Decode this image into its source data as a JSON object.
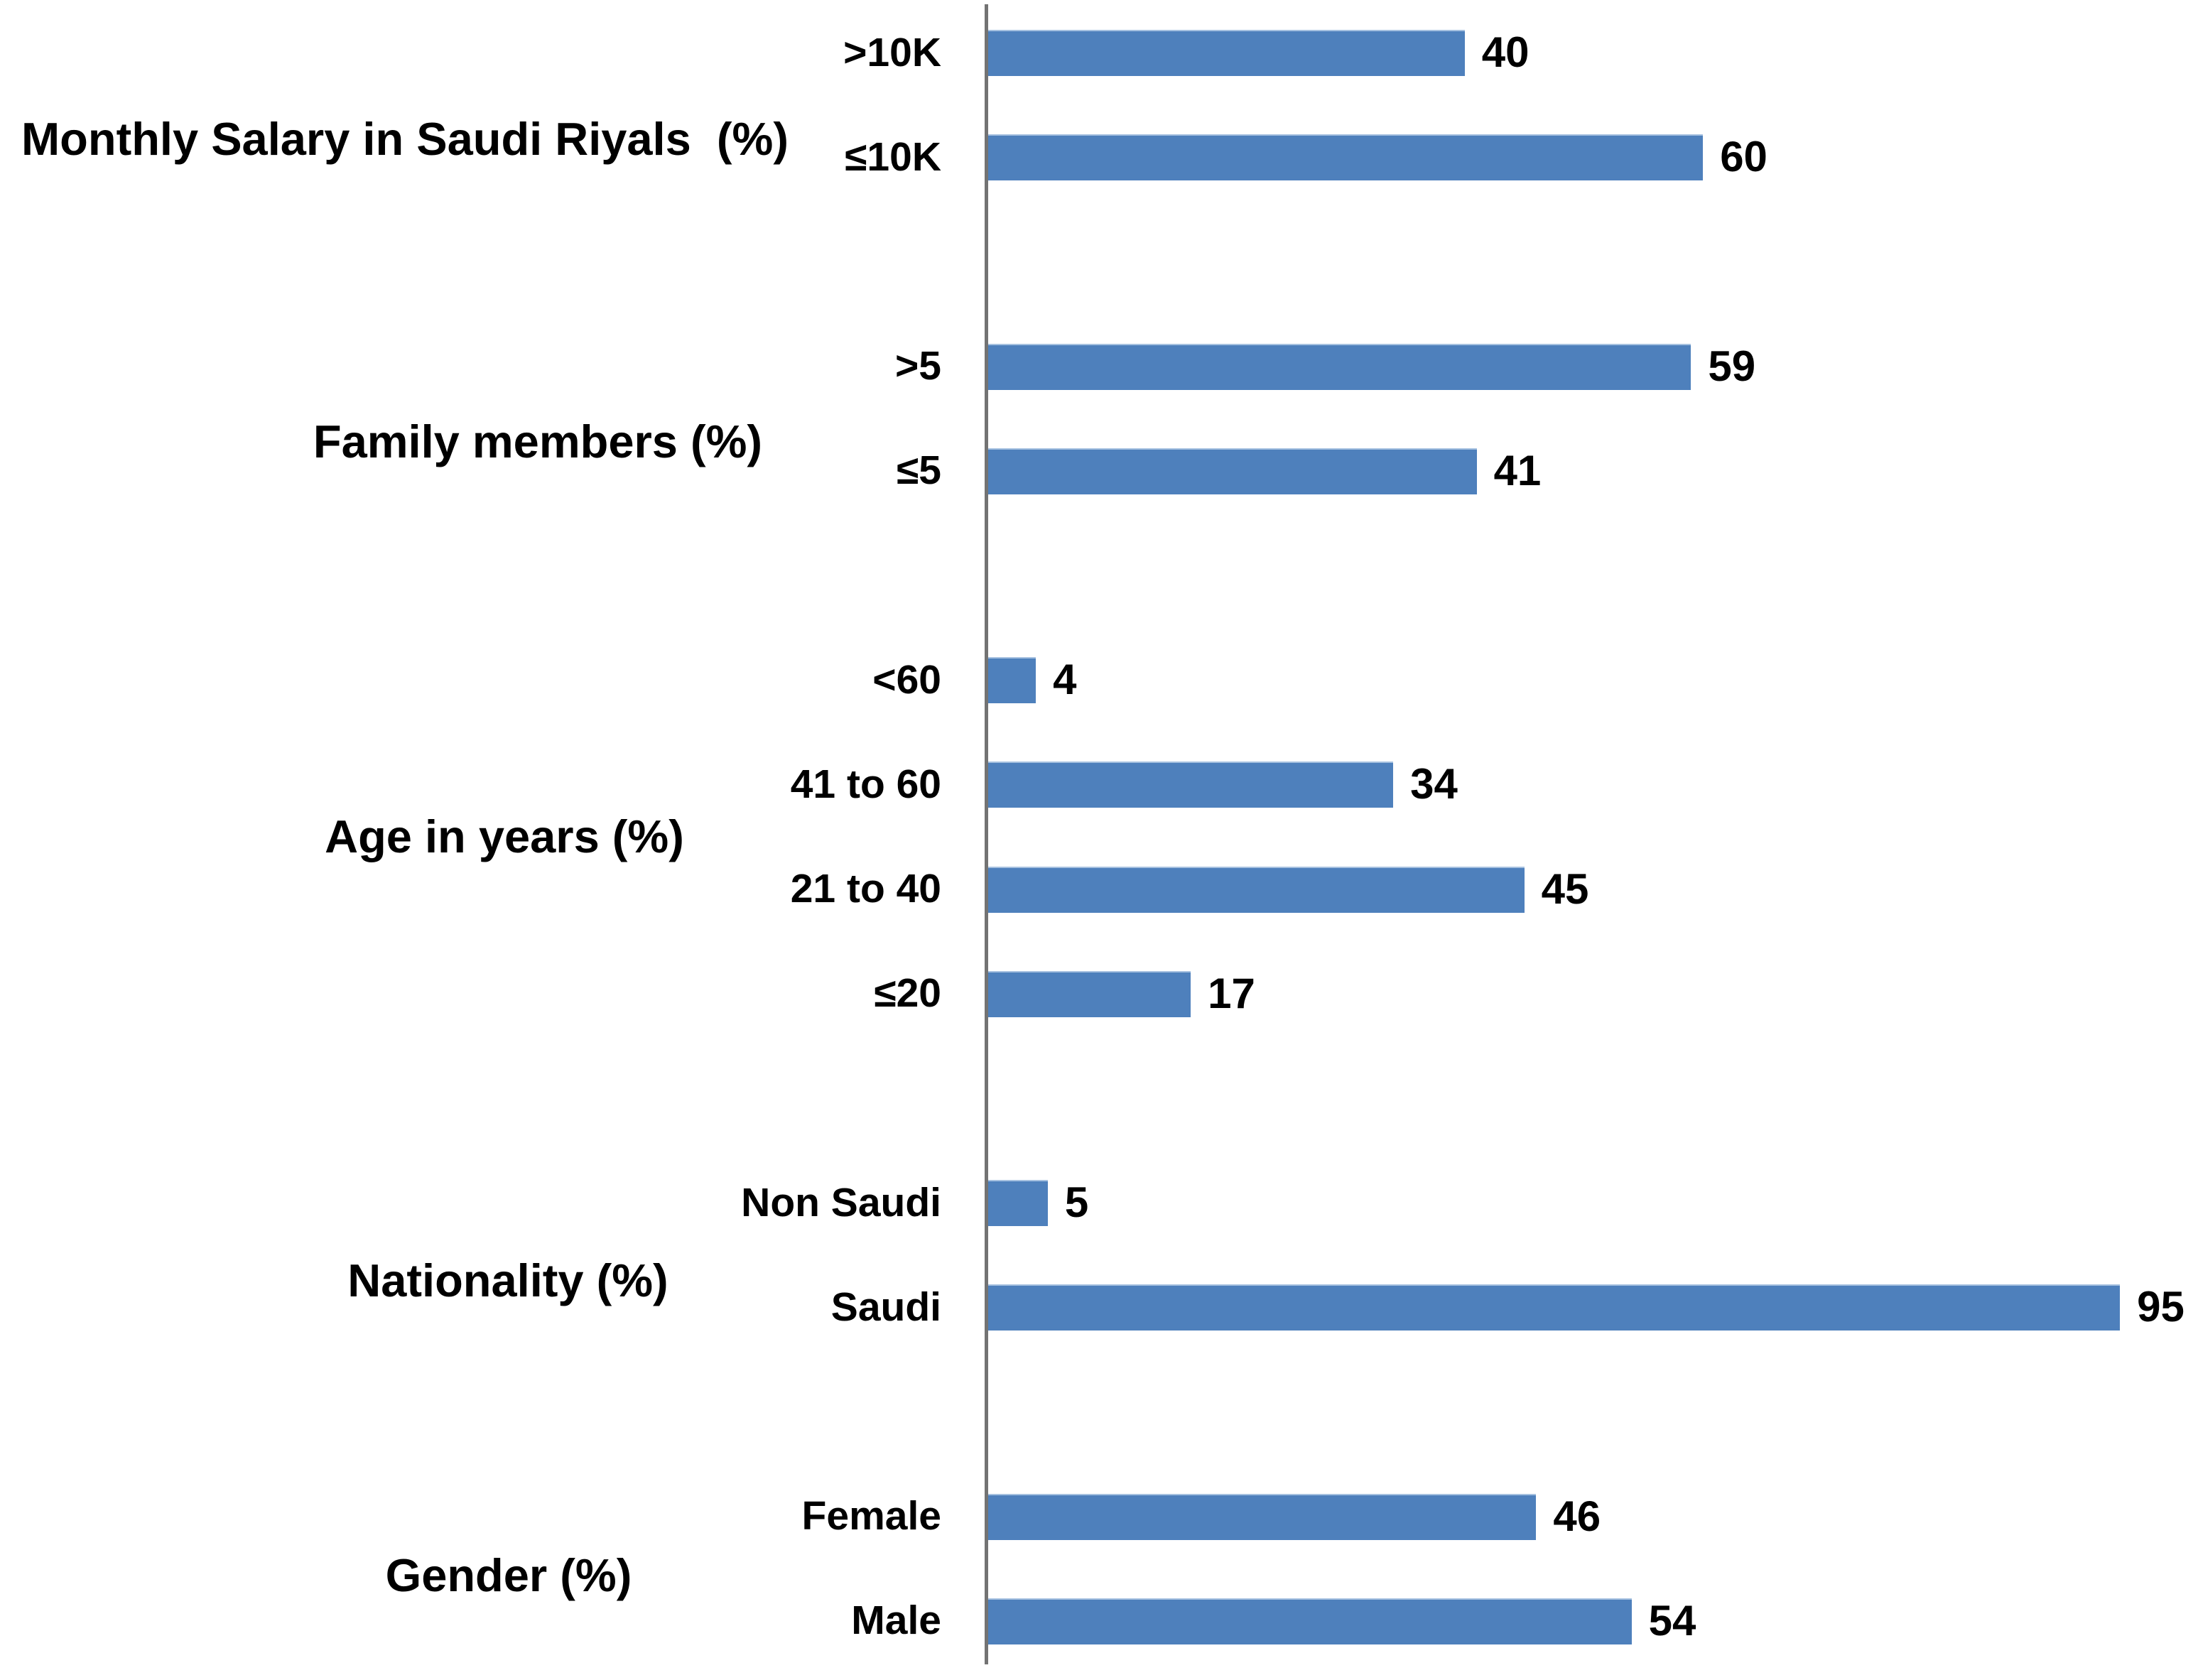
{
  "chart_data": {
    "type": "bar",
    "orientation": "horizontal",
    "title": "",
    "xlabel": "",
    "ylabel": "",
    "xlim": [
      0,
      100
    ],
    "grid": false,
    "legend": false,
    "background_color": "#ffffff",
    "bar_color": "#4E80BC",
    "axis_line_color": "#737373",
    "label_color": "#000000",
    "value_labels_shown": true,
    "groups": [
      {
        "label": "Monthly Salary in Saudi Riyals  (%)",
        "categories": [
          ">10K",
          "≤10K"
        ],
        "values": [
          40,
          60
        ]
      },
      {
        "label": "Family members (%)",
        "categories": [
          ">5",
          "≤5"
        ],
        "values": [
          59,
          41
        ]
      },
      {
        "label": "Age in years (%)",
        "categories": [
          "<60",
          "41 to 60",
          "21 to 40",
          "≤20"
        ],
        "values": [
          4,
          34,
          45,
          17
        ]
      },
      {
        "label": "Nationality (%)",
        "categories": [
          "Non Saudi",
          "Saudi"
        ],
        "values": [
          5,
          95
        ]
      },
      {
        "label": "Gender (%)",
        "categories": [
          "Female",
          "Male"
        ],
        "values": [
          46,
          54
        ]
      }
    ]
  }
}
